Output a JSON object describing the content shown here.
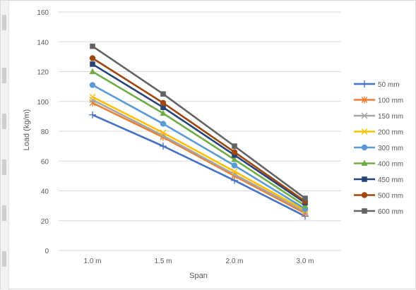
{
  "chart_data": {
    "type": "line",
    "categories": [
      "1.0 m",
      "1.5 m",
      "2.0 m",
      "3.0 m"
    ],
    "xlabel": "Span",
    "ylabel": "Load (kg/m)",
    "ylim": [
      0,
      160
    ],
    "yticks": [
      0,
      20,
      40,
      60,
      80,
      100,
      120,
      140,
      160
    ],
    "grid": "horizontal",
    "legend_position": "right",
    "series": [
      {
        "name": "50 mm",
        "color": "#4472c4",
        "marker": "plus",
        "values": [
          91,
          70,
          47,
          23
        ]
      },
      {
        "name": "100 mm",
        "color": "#ed7d31",
        "marker": "star",
        "values": [
          99,
          76,
          50,
          25
        ]
      },
      {
        "name": "150 mm",
        "color": "#a5a5a5",
        "marker": "x",
        "values": [
          101,
          77,
          51,
          26
        ]
      },
      {
        "name": "200 mm",
        "color": "#ffc000",
        "marker": "x",
        "values": [
          103,
          79,
          53,
          27
        ]
      },
      {
        "name": "300 mm",
        "color": "#5b9bd5",
        "marker": "circle",
        "values": [
          111,
          85,
          57,
          28
        ]
      },
      {
        "name": "400 mm",
        "color": "#70ad47",
        "marker": "triangle",
        "values": [
          120,
          92,
          61,
          30
        ]
      },
      {
        "name": "450 mm",
        "color": "#264478",
        "marker": "square",
        "values": [
          125,
          96,
          64,
          32
        ]
      },
      {
        "name": "500 mm",
        "color": "#9e480e",
        "marker": "circle",
        "values": [
          129,
          99,
          66,
          33
        ]
      },
      {
        "name": "600 mm",
        "color": "#636363",
        "marker": "square",
        "values": [
          137,
          105,
          70,
          35
        ]
      }
    ]
  }
}
